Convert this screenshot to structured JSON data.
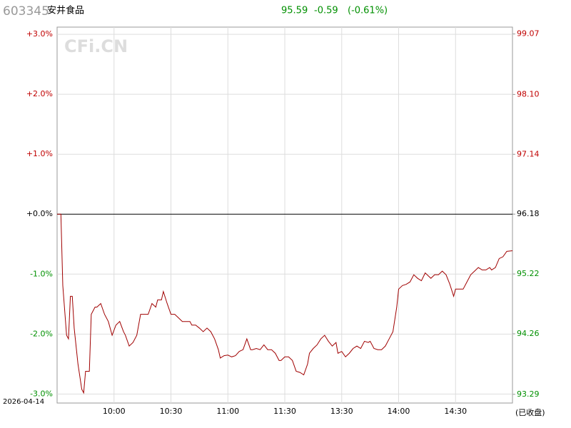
{
  "chart_data": {
    "type": "line",
    "header": {
      "code": "603345",
      "name": "安井食品",
      "price": "95.59",
      "change": "-0.59",
      "change_pct": "(-0.61%)"
    },
    "watermark": "CFi.CN",
    "date": "2026-04-14",
    "status": "(已收盘)",
    "x": [
      0,
      2,
      3,
      5,
      6,
      7,
      8,
      9,
      11,
      13,
      14,
      15,
      17,
      18,
      20,
      21,
      23,
      25,
      27,
      29,
      31,
      33,
      35,
      36,
      38,
      40,
      42,
      44,
      46,
      48,
      50,
      52,
      53,
      55,
      56,
      58,
      60,
      62,
      64,
      66,
      68,
      70,
      71,
      73,
      75,
      77,
      79,
      81,
      83,
      85,
      86,
      88,
      90,
      92,
      94,
      96,
      98,
      100,
      102,
      103,
      105,
      107,
      109,
      111,
      113,
      115,
      117,
      118,
      120,
      122,
      124,
      126,
      128,
      130,
      132,
      133,
      135,
      137,
      139,
      141,
      143,
      145,
      147,
      148,
      150,
      152,
      154,
      156,
      158,
      160,
      162,
      164,
      165,
      167,
      169,
      171,
      173,
      175,
      177,
      179,
      180,
      182,
      184,
      186,
      188,
      190,
      192,
      194,
      195,
      197,
      199,
      201,
      203,
      205,
      207,
      209,
      210,
      212,
      214,
      216,
      218,
      220,
      222,
      224,
      226,
      228,
      229,
      231,
      233,
      235,
      237,
      240
    ],
    "series": [
      {
        "color": "#a00000",
        "values": [
          0,
          0,
          -1.19,
          -2.02,
          -2.08,
          -1.37,
          -1.37,
          -1.9,
          -2.5,
          -2.92,
          -2.98,
          -2.62,
          -2.62,
          -1.67,
          -1.55,
          -1.55,
          -1.49,
          -1.67,
          -1.79,
          -2.02,
          -1.85,
          -1.79,
          -1.96,
          -2.02,
          -2.2,
          -2.14,
          -2.02,
          -1.67,
          -1.67,
          -1.67,
          -1.49,
          -1.55,
          -1.43,
          -1.43,
          -1.29,
          -1.49,
          -1.67,
          -1.67,
          -1.73,
          -1.79,
          -1.79,
          -1.79,
          -1.85,
          -1.85,
          -1.9,
          -1.96,
          -1.9,
          -1.96,
          -2.08,
          -2.26,
          -2.4,
          -2.36,
          -2.35,
          -2.38,
          -2.36,
          -2.29,
          -2.26,
          -2.08,
          -2.26,
          -2.26,
          -2.24,
          -2.26,
          -2.18,
          -2.26,
          -2.26,
          -2.32,
          -2.44,
          -2.44,
          -2.38,
          -2.38,
          -2.44,
          -2.62,
          -2.64,
          -2.68,
          -2.5,
          -2.32,
          -2.24,
          -2.18,
          -2.08,
          -2.02,
          -2.12,
          -2.2,
          -2.14,
          -2.32,
          -2.29,
          -2.38,
          -2.32,
          -2.24,
          -2.2,
          -2.24,
          -2.12,
          -2.14,
          -2.12,
          -2.24,
          -2.26,
          -2.26,
          -2.2,
          -2.08,
          -1.96,
          -1.55,
          -1.25,
          -1.19,
          -1.17,
          -1.13,
          -1.01,
          -1.07,
          -1.11,
          -0.98,
          -1.01,
          -1.07,
          -1.01,
          -1.01,
          -0.95,
          -1.01,
          -1.17,
          -1.37,
          -1.25,
          -1.25,
          -1.25,
          -1.13,
          -1.01,
          -0.95,
          -0.89,
          -0.93,
          -0.93,
          -0.89,
          -0.93,
          -0.89,
          -0.74,
          -0.71,
          -0.62,
          -0.61
        ]
      }
    ],
    "xlim": [
      0,
      240
    ],
    "xticks": [
      {
        "value": 30,
        "label": "10:00"
      },
      {
        "value": 60,
        "label": "10:30"
      },
      {
        "value": 90,
        "label": "11:00"
      },
      {
        "value": 120,
        "label": "11:30"
      },
      {
        "value": 150,
        "label": "13:30"
      },
      {
        "value": 180,
        "label": "14:00"
      },
      {
        "value": 210,
        "label": "14:30"
      }
    ],
    "ylim": [
      -3.15,
      3.12
    ],
    "yticks": [
      {
        "value": 3,
        "label": "+3.0%"
      },
      {
        "value": 2,
        "label": "+2.0%"
      },
      {
        "value": 1,
        "label": "+1.0%"
      },
      {
        "value": 0,
        "label": "+0.0%"
      },
      {
        "value": -1,
        "label": "-1.0%"
      },
      {
        "value": -2,
        "label": "-2.0%"
      },
      {
        "value": -3,
        "label": "-3.0%"
      }
    ],
    "y2lim": [
      93.15,
      99.18
    ],
    "y2ticks": [
      99.07,
      {
        "value": 98.1,
        "label": "98.10"
      },
      97.14,
      96.18,
      95.22,
      94.26,
      93.29
    ],
    "grid": true
  }
}
